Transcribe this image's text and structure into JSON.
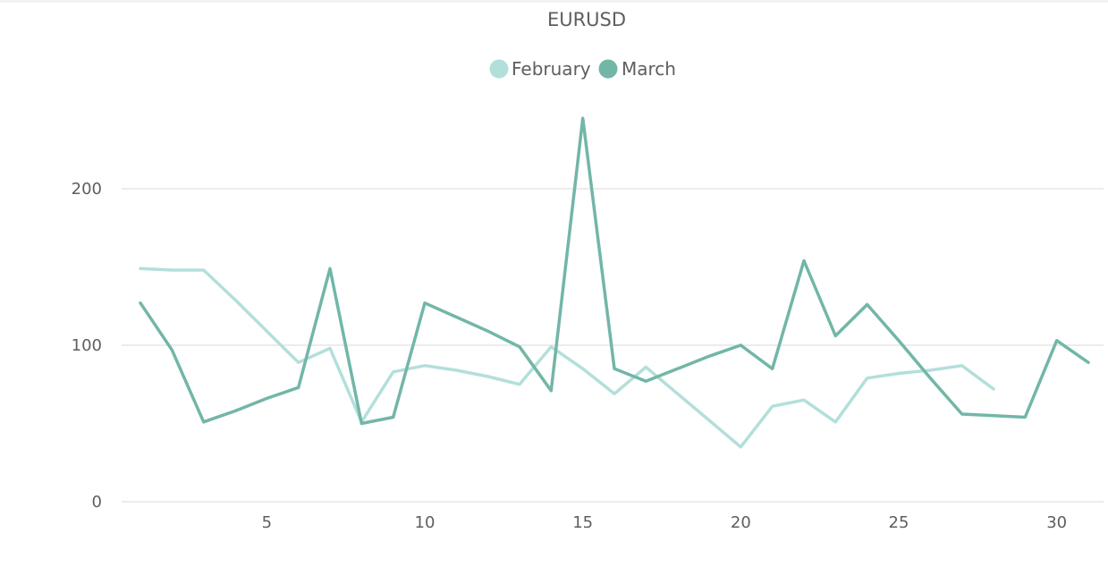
{
  "chart_data": {
    "type": "line",
    "title": "EURUSD",
    "xlabel": "",
    "ylabel": "",
    "xlim": [
      0.5,
      31.5
    ],
    "ylim": [
      0,
      250
    ],
    "x_ticks": [
      5,
      10,
      15,
      20,
      25,
      30
    ],
    "y_ticks": [
      0,
      100,
      200
    ],
    "grid": true,
    "legend_position": "top-center",
    "series": [
      {
        "name": "February",
        "color": "#b3dfdb",
        "x": [
          1,
          2,
          3,
          4,
          5,
          6,
          7,
          8,
          9,
          10,
          11,
          12,
          13,
          14,
          15,
          16,
          17,
          18,
          19,
          20,
          21,
          22,
          23,
          24,
          25,
          26,
          27,
          28
        ],
        "values": [
          149,
          148,
          148,
          129,
          109,
          89,
          98,
          51,
          83,
          87,
          84,
          80,
          75,
          99,
          85,
          69,
          86,
          69,
          52,
          35,
          61,
          65,
          51,
          79,
          82,
          84,
          87,
          72
        ]
      },
      {
        "name": "March",
        "color": "#72b6a8",
        "x": [
          1,
          2,
          3,
          4,
          5,
          6,
          7,
          8,
          9,
          10,
          11,
          12,
          13,
          14,
          15,
          16,
          17,
          18,
          19,
          20,
          21,
          22,
          23,
          24,
          25,
          26,
          27,
          28,
          29,
          30,
          31
        ],
        "values": [
          127,
          97,
          51,
          58,
          66,
          73,
          149,
          50,
          54,
          127,
          118,
          109,
          99,
          71,
          245,
          85,
          77,
          85,
          93,
          100,
          85,
          154,
          106,
          126,
          103,
          79,
          56,
          55,
          54,
          103,
          89
        ]
      }
    ]
  }
}
